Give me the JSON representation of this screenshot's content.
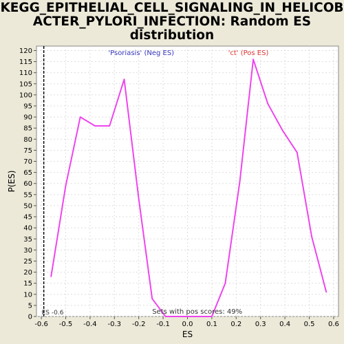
{
  "title_lines": [
    "KEGG_EPITHELIAL_CELL_SIGNALING_IN_HELICOB",
    "ACTER_PYLORI_INFECTION: Random ES",
    "distribution"
  ],
  "chart_data": {
    "type": "line",
    "title": "KEGG_EPITHELIAL_CELL_SIGNALING_IN_HELICOBACTER_PYLORI_INFECTION: Random ES distribution",
    "xlabel": "ES",
    "ylabel": "P(ES)",
    "xlim": [
      -0.62,
      0.62
    ],
    "ylim": [
      0,
      122
    ],
    "xticks": [
      -0.6,
      -0.5,
      -0.4,
      -0.3,
      -0.2,
      -0.1,
      0.0,
      0.1,
      0.2,
      0.3,
      0.4,
      0.5,
      0.6
    ],
    "xtick_labels": [
      "-0.6",
      "-0.5",
      "-0.4",
      "-0.3",
      "-0.2",
      "-0.1",
      "0.0",
      "0.1",
      "0.2",
      "0.3",
      "0.4",
      "0.5",
      "0.6"
    ],
    "yticks": [
      0,
      5,
      10,
      15,
      20,
      25,
      30,
      35,
      40,
      45,
      50,
      55,
      60,
      65,
      70,
      75,
      80,
      85,
      90,
      95,
      100,
      105,
      110,
      115,
      120
    ],
    "grid": true,
    "series": [
      {
        "color": "#ee44ee",
        "x": [
          -0.56,
          -0.5,
          -0.44,
          -0.38,
          -0.32,
          -0.26,
          -0.2,
          -0.145,
          -0.09,
          0.1,
          0.155,
          0.215,
          0.27,
          0.33,
          0.39,
          0.45,
          0.51,
          0.57
        ],
        "y": [
          18,
          59,
          90,
          86,
          86,
          107,
          53,
          8,
          0,
          0,
          15,
          61,
          116,
          96,
          84,
          74,
          36,
          11
        ]
      }
    ],
    "es_marker": {
      "x": -0.59,
      "label": "ES -0.6"
    },
    "annotations": {
      "neg_label": "'Psoriasis' (Neg ES)",
      "pos_label": "'ct' (Pos ES)",
      "neg_color": "#3333bb",
      "pos_color": "#dd3333",
      "footer": "Sets with pos scores: 49%"
    }
  }
}
